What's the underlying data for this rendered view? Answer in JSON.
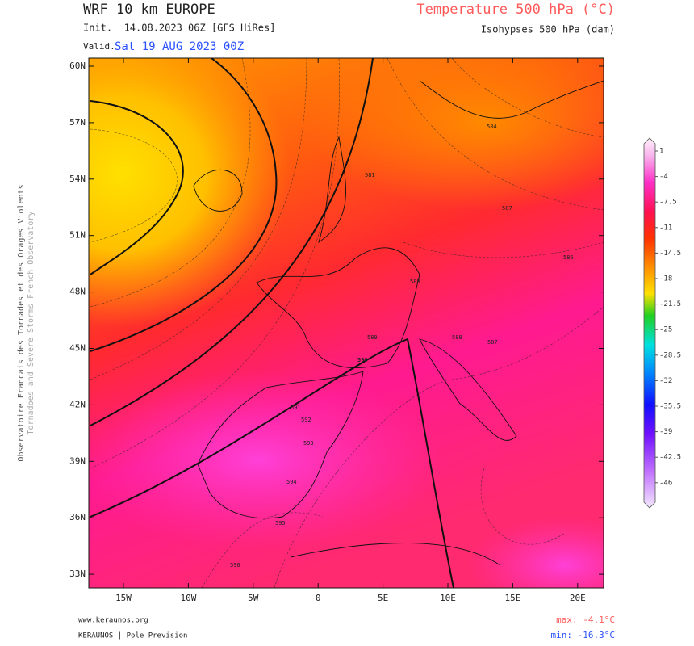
{
  "header": {
    "title": "WRF 10 km EUROPE",
    "init": "Init.  14.08.2023 06Z [GFS HiRes]",
    "valid_label": "Valid.",
    "valid_date": "Sat 19 AUG 2023 00Z",
    "parameter": "Temperature 500 hPa (°C)",
    "contours": "Isohypses 500 hPa (dam)"
  },
  "side_text": [
    "Observatoire Francais des Tornades et des Orages Violents",
    "Tornadoes and Severe Storms French Observatory"
  ],
  "map": {
    "lat_labels": [
      "60N",
      "57N",
      "54N",
      "51N",
      "48N",
      "45N",
      "42N",
      "39N",
      "36N",
      "33N"
    ],
    "lon_labels": [
      "15W",
      "10W",
      "5W",
      "0",
      "5E",
      "10E",
      "15E",
      "20E"
    ],
    "contour_labels": [
      "581",
      "584",
      "587",
      "588",
      "586",
      "589",
      "590",
      "591",
      "592",
      "593",
      "594",
      "595",
      "596",
      "588",
      "587"
    ]
  },
  "colorbar": {
    "labels": [
      1,
      -4,
      -7.5,
      -11,
      -14.5,
      -18,
      -21.5,
      -25,
      -28.5,
      -32,
      -35.5,
      -39,
      -42.5,
      -46
    ]
  },
  "footer": {
    "website": "www.keraunos.org",
    "credit": "KERAUNOS | Pole Prevision",
    "max": "max: -4.1°C",
    "min": "min: -16.3°C"
  }
}
